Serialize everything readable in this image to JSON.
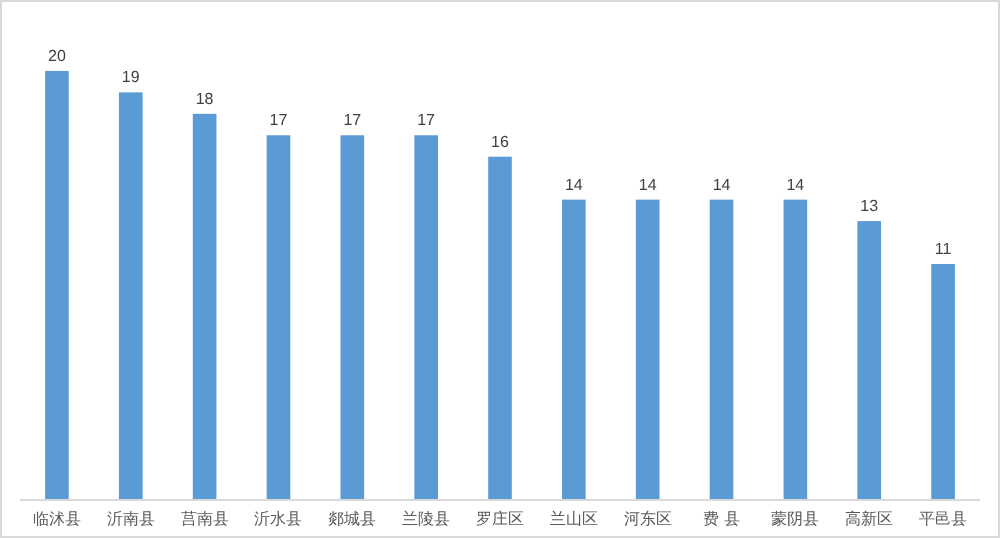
{
  "chart_data": {
    "type": "bar",
    "categories": [
      "临沭县",
      "沂南县",
      "莒南县",
      "沂水县",
      "郯城县",
      "兰陵县",
      "罗庄区",
      "兰山区",
      "河东区",
      "费 县",
      "蒙阴县",
      "高新区",
      "平邑县"
    ],
    "values": [
      20,
      19,
      18,
      17,
      17,
      17,
      16,
      14,
      14,
      14,
      14,
      13,
      11
    ],
    "color": "#5b9bd5",
    "data_labels": true
  }
}
